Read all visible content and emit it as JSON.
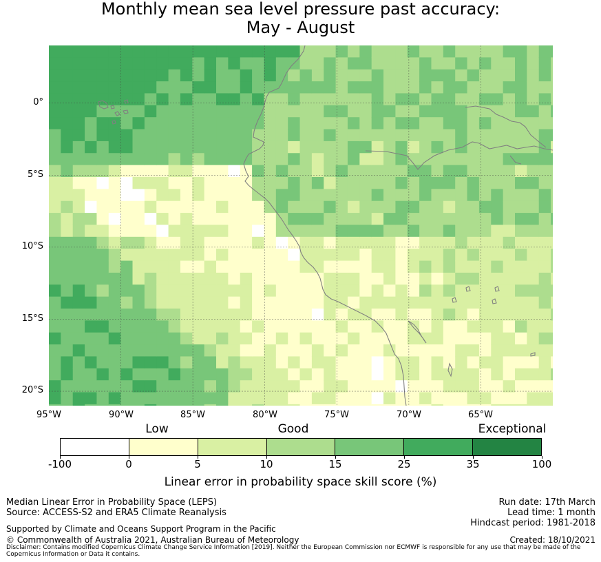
{
  "title": {
    "line1": "Monthly mean sea level pressure past accuracy:",
    "line2": "May - August"
  },
  "map": {
    "lat_labels": [
      "0°",
      "5°S",
      "10°S",
      "15°S",
      "20°S"
    ],
    "lon_labels": [
      "95°W",
      "90°W",
      "85°W",
      "80°W",
      "75°W",
      "70°W",
      "65°W"
    ],
    "extent": {
      "lon_min": -95,
      "lon_max": -60,
      "lat_min": -21,
      "lat_max": 4
    },
    "colors": {
      "white": "#ffffff",
      "low": "#ffffcc",
      "good_low": "#d9f0a3",
      "good": "#addd8e",
      "good_high": "#78c679",
      "exceptional_low": "#41ab5d",
      "exceptional": "#238443",
      "coast": "#808080",
      "grid": "#444444"
    }
  },
  "colorbar": {
    "category_labels": {
      "low": "Low",
      "good": "Good",
      "exceptional": "Exceptional"
    },
    "ticks": [
      "-100",
      "0",
      "5",
      "10",
      "15",
      "25",
      "35",
      "100"
    ],
    "segments": [
      "#ffffff",
      "#ffffcc",
      "#d9f0a3",
      "#addd8e",
      "#78c679",
      "#41ab5d",
      "#238443"
    ],
    "title": "Linear error in probability space skill score (%)"
  },
  "footer": {
    "left_line1": "Median Linear Error in Probability Space (LEPS)",
    "left_line2": "Source: ACCESS-S2 and ERA5 Climate Reanalysis",
    "left_line3": "Supported by Climate and Oceans Support Program in the Pacific",
    "left_line4": "© Commonwealth of Australia 2021, Australian Bureau of Meteorology",
    "run_date": "Run date: 17th March",
    "lead_time": "Lead time: 1 month",
    "hindcast": "Hindcast period: 1981-2018",
    "created": "Created: 18/10/2021",
    "disclaimer": "Disclaimer: Contains modified Copernicus Climate Change Service Information [2019]. Neither the European Commission nor ECMWF is responsible for any use that may be made of the Copernicus Information or Data it contains."
  }
}
